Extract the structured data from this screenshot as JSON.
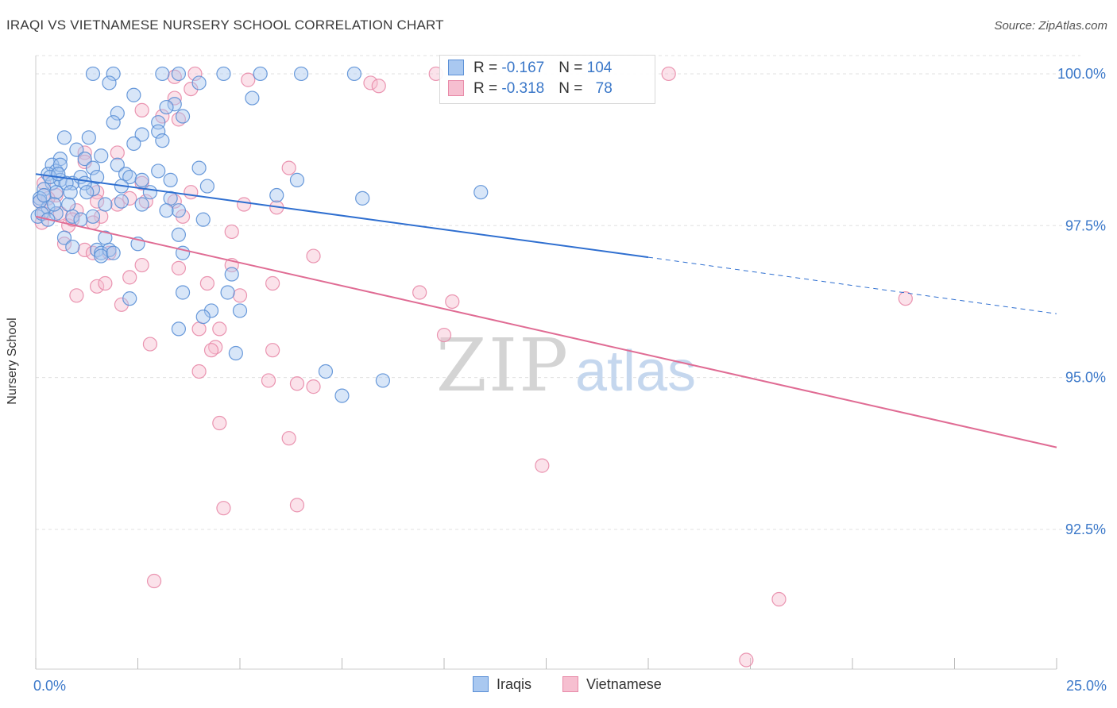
{
  "header": {
    "title": "IRAQI VS VIETNAMESE NURSERY SCHOOL CORRELATION CHART",
    "source": "Source: ZipAtlas.com"
  },
  "watermark": {
    "zip": "ZIP",
    "atlas": "atlas"
  },
  "legend": {
    "iraqis": {
      "r_label": "R = ",
      "r_value": "-0.167",
      "n_label": "N = ",
      "n_value": "104"
    },
    "vietnamese": {
      "r_label": "R = ",
      "r_value": "-0.318",
      "n_label": "N = ",
      "n_value": "78"
    }
  },
  "colors": {
    "iraqis_fill": "#a9c8f0",
    "iraqis_stroke": "#5a8fd6",
    "iraqis_line": "#2f6fd0",
    "vietnamese_fill": "#f6bfd0",
    "vietnamese_stroke": "#e88aa8",
    "vietnamese_line": "#e06c94",
    "tick_label": "#3b78c9",
    "grid": "#e0e0e0"
  },
  "chart_data": {
    "type": "scatter",
    "title": "IRAQI VS VIETNAMESE NURSERY SCHOOL CORRELATION CHART",
    "xlabel": "",
    "ylabel": "Nursery School",
    "xlim": [
      0,
      25
    ],
    "ylim": [
      90.2,
      100.3
    ],
    "x_ticks": [
      0,
      25
    ],
    "x_tick_labels": [
      "0.0%",
      "25.0%"
    ],
    "y_ticks": [
      92.5,
      95.0,
      97.5,
      100.0
    ],
    "y_tick_labels": [
      "92.5%",
      "95.0%",
      "97.5%",
      "100.0%"
    ],
    "grid": true,
    "legend_position": "top-center",
    "series": [
      {
        "name": "Iraqis",
        "color": "#a9c8f0",
        "trend": {
          "x0": 0,
          "y0": 98.35,
          "x1": 15,
          "y1": 96.98,
          "dashed_to_x": 25,
          "dashed_to_y": 96.05
        },
        "points": [
          [
            1.4,
            100.0
          ],
          [
            1.9,
            100.0
          ],
          [
            3.1,
            100.0
          ],
          [
            3.5,
            100.0
          ],
          [
            4.6,
            100.0
          ],
          [
            5.5,
            100.0
          ],
          [
            6.5,
            100.0
          ],
          [
            7.8,
            100.0
          ],
          [
            1.8,
            99.85
          ],
          [
            4.0,
            99.85
          ],
          [
            2.4,
            99.65
          ],
          [
            5.3,
            99.6
          ],
          [
            3.4,
            99.5
          ],
          [
            2.0,
            99.35
          ],
          [
            3.2,
            99.45
          ],
          [
            3.6,
            99.3
          ],
          [
            3.0,
            99.2
          ],
          [
            2.6,
            99.0
          ],
          [
            1.9,
            99.2
          ],
          [
            3.0,
            99.05
          ],
          [
            2.4,
            98.85
          ],
          [
            0.7,
            98.95
          ],
          [
            1.3,
            98.95
          ],
          [
            3.1,
            98.9
          ],
          [
            1.0,
            98.75
          ],
          [
            1.6,
            98.65
          ],
          [
            0.6,
            98.6
          ],
          [
            0.4,
            98.5
          ],
          [
            1.2,
            98.6
          ],
          [
            0.5,
            98.4
          ],
          [
            1.4,
            98.45
          ],
          [
            2.0,
            98.5
          ],
          [
            3.0,
            98.4
          ],
          [
            4.0,
            98.45
          ],
          [
            2.2,
            98.35
          ],
          [
            0.3,
            98.35
          ],
          [
            0.4,
            98.2
          ],
          [
            0.6,
            98.25
          ],
          [
            0.9,
            98.2
          ],
          [
            1.1,
            98.3
          ],
          [
            1.5,
            98.3
          ],
          [
            2.3,
            98.3
          ],
          [
            2.6,
            98.25
          ],
          [
            3.3,
            98.25
          ],
          [
            6.4,
            98.25
          ],
          [
            0.2,
            98.1
          ],
          [
            0.5,
            98.05
          ],
          [
            1.4,
            98.1
          ],
          [
            4.2,
            98.15
          ],
          [
            0.8,
            97.85
          ],
          [
            1.7,
            97.85
          ],
          [
            2.1,
            97.9
          ],
          [
            2.6,
            97.85
          ],
          [
            3.3,
            97.95
          ],
          [
            3.5,
            97.75
          ],
          [
            5.9,
            98.0
          ],
          [
            8.0,
            97.95
          ],
          [
            10.9,
            98.05
          ],
          [
            0.1,
            97.95
          ],
          [
            0.3,
            97.8
          ],
          [
            0.5,
            97.7
          ],
          [
            0.9,
            97.65
          ],
          [
            1.1,
            97.6
          ],
          [
            1.4,
            97.65
          ],
          [
            4.1,
            97.6
          ],
          [
            3.5,
            97.35
          ],
          [
            1.7,
            97.3
          ],
          [
            0.7,
            97.3
          ],
          [
            0.9,
            97.15
          ],
          [
            1.5,
            97.1
          ],
          [
            1.6,
            97.05
          ],
          [
            1.8,
            97.1
          ],
          [
            3.6,
            97.05
          ],
          [
            1.6,
            97.0
          ],
          [
            4.8,
            96.7
          ],
          [
            3.6,
            96.4
          ],
          [
            4.7,
            96.4
          ],
          [
            2.3,
            96.3
          ],
          [
            4.3,
            96.1
          ],
          [
            4.1,
            96.0
          ],
          [
            5.0,
            96.1
          ],
          [
            3.5,
            95.8
          ],
          [
            4.9,
            95.4
          ],
          [
            7.1,
            95.1
          ],
          [
            8.5,
            94.95
          ],
          [
            7.5,
            94.7
          ],
          [
            0.05,
            97.65
          ],
          [
            0.1,
            97.9
          ],
          [
            0.2,
            98.0
          ],
          [
            0.15,
            97.7
          ],
          [
            0.6,
            98.5
          ],
          [
            0.75,
            98.2
          ],
          [
            0.3,
            97.6
          ],
          [
            0.45,
            97.85
          ],
          [
            1.2,
            98.2
          ],
          [
            2.1,
            98.15
          ],
          [
            2.5,
            97.2
          ],
          [
            1.9,
            97.05
          ],
          [
            0.35,
            98.3
          ],
          [
            0.85,
            98.05
          ],
          [
            1.25,
            98.05
          ],
          [
            2.8,
            98.05
          ],
          [
            3.2,
            97.75
          ],
          [
            0.55,
            98.35
          ]
        ]
      },
      {
        "name": "Vietnamese",
        "color": "#f6bfd0",
        "trend": {
          "x0": 0,
          "y0": 97.65,
          "x1": 25,
          "y1": 93.85
        },
        "points": [
          [
            9.8,
            100.0
          ],
          [
            15.5,
            100.0
          ],
          [
            3.9,
            100.0
          ],
          [
            3.4,
            99.95
          ],
          [
            5.2,
            99.9
          ],
          [
            8.2,
            99.85
          ],
          [
            8.4,
            99.8
          ],
          [
            3.8,
            99.75
          ],
          [
            3.4,
            99.6
          ],
          [
            2.6,
            99.4
          ],
          [
            3.1,
            99.3
          ],
          [
            3.5,
            99.25
          ],
          [
            2.0,
            98.7
          ],
          [
            1.2,
            98.7
          ],
          [
            1.2,
            98.55
          ],
          [
            6.2,
            98.45
          ],
          [
            2.6,
            98.2
          ],
          [
            1.5,
            98.05
          ],
          [
            3.8,
            98.05
          ],
          [
            0.2,
            98.2
          ],
          [
            0.5,
            98.0
          ],
          [
            0.1,
            97.9
          ],
          [
            3.4,
            97.9
          ],
          [
            2.0,
            97.85
          ],
          [
            2.7,
            97.9
          ],
          [
            5.1,
            97.85
          ],
          [
            5.9,
            97.8
          ],
          [
            1.0,
            97.75
          ],
          [
            0.2,
            97.7
          ],
          [
            3.6,
            97.65
          ],
          [
            1.6,
            97.65
          ],
          [
            1.4,
            97.55
          ],
          [
            0.8,
            97.5
          ],
          [
            0.9,
            97.6
          ],
          [
            4.8,
            97.4
          ],
          [
            0.7,
            97.2
          ],
          [
            1.2,
            97.1
          ],
          [
            1.4,
            97.05
          ],
          [
            1.8,
            97.05
          ],
          [
            6.8,
            97.0
          ],
          [
            2.6,
            96.85
          ],
          [
            3.5,
            96.8
          ],
          [
            2.3,
            96.65
          ],
          [
            4.2,
            96.55
          ],
          [
            4.8,
            96.85
          ],
          [
            1.5,
            96.5
          ],
          [
            1.7,
            96.55
          ],
          [
            5.8,
            96.55
          ],
          [
            9.4,
            96.4
          ],
          [
            1.0,
            96.35
          ],
          [
            5.0,
            96.35
          ],
          [
            10.2,
            96.25
          ],
          [
            2.1,
            96.2
          ],
          [
            21.3,
            96.3
          ],
          [
            4.0,
            95.8
          ],
          [
            4.5,
            95.8
          ],
          [
            2.8,
            95.55
          ],
          [
            4.4,
            95.5
          ],
          [
            4.3,
            95.45
          ],
          [
            5.8,
            95.45
          ],
          [
            10.0,
            95.7
          ],
          [
            4.0,
            95.1
          ],
          [
            5.7,
            94.95
          ],
          [
            6.4,
            94.9
          ],
          [
            6.8,
            94.85
          ],
          [
            4.5,
            94.25
          ],
          [
            6.2,
            94.0
          ],
          [
            12.4,
            93.55
          ],
          [
            4.6,
            92.85
          ],
          [
            6.4,
            92.9
          ],
          [
            2.9,
            91.65
          ],
          [
            18.2,
            91.35
          ],
          [
            17.4,
            90.35
          ],
          [
            0.15,
            97.55
          ],
          [
            0.3,
            97.95
          ],
          [
            1.5,
            97.9
          ],
          [
            2.3,
            97.95
          ],
          [
            0.6,
            97.7
          ]
        ]
      }
    ]
  }
}
